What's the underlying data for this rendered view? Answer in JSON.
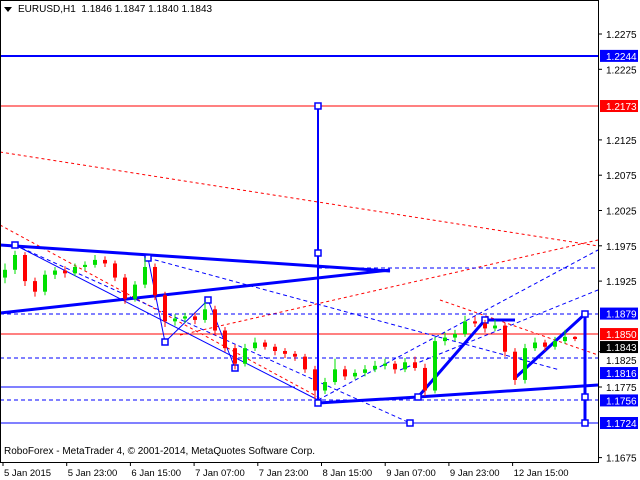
{
  "header": {
    "symbol": "EURUSD,H1",
    "open": "1.1846",
    "high": "1.1847",
    "low": "1.1840",
    "close": "1.1843"
  },
  "footer": {
    "copyright": "RoboForex - MetaTrader 4, © 2001-2014, MetaQuotes Software Corp."
  },
  "colors": {
    "bull": "#00e000",
    "bear": "#ff0000",
    "drawing": "#0000ff",
    "level_red": "#ff0000"
  },
  "chart_data": {
    "type": "candlestick",
    "ylim": [
      1.165,
      1.23
    ],
    "y_ticks": [
      "1.2275",
      "1.2225",
      "1.2125",
      "1.2075",
      "1.2025",
      "1.1975",
      "1.1925",
      "1.1825",
      "1.1775",
      "1.1675"
    ],
    "x_ticks": [
      "5 Jan 2015",
      "5 Jan 23:00",
      "6 Jan 15:00",
      "7 Jan 07:00",
      "7 Jan 23:00",
      "8 Jan 15:00",
      "9 Jan 07:00",
      "9 Jan 23:00",
      "12 Jan 15:00"
    ],
    "price_labels": [
      {
        "value": "1.2244",
        "color": "#0000ff"
      },
      {
        "value": "1.2173",
        "color": "#ff0000"
      },
      {
        "value": "1.1879",
        "color": "#0000ff"
      },
      {
        "value": "1.1843",
        "color": "#000000"
      },
      {
        "value": "1.1850",
        "color": "#ff0000"
      },
      {
        "value": "1.1816",
        "color": "#0000ff"
      },
      {
        "value": "1.1756",
        "color": "#0000ff"
      },
      {
        "value": "1.1724",
        "color": "#0000ff"
      }
    ],
    "candles": [
      [
        1.193,
        1.195,
        1.1922,
        1.1941
      ],
      [
        1.1941,
        1.1968,
        1.1935,
        1.1962
      ],
      [
        1.1962,
        1.1966,
        1.1918,
        1.1925
      ],
      [
        1.1925,
        1.193,
        1.1903,
        1.191
      ],
      [
        1.191,
        1.194,
        1.1905,
        1.1934
      ],
      [
        1.1934,
        1.1945,
        1.1928,
        1.194
      ],
      [
        1.194,
        1.1946,
        1.193,
        1.1936
      ],
      [
        1.1936,
        1.195,
        1.1932,
        1.1945
      ],
      [
        1.1945,
        1.1953,
        1.194,
        1.1948
      ],
      [
        1.1948,
        1.1962,
        1.1944,
        1.1955
      ],
      [
        1.1955,
        1.196,
        1.1945,
        1.195
      ],
      [
        1.195,
        1.1954,
        1.1925,
        1.193
      ],
      [
        1.193,
        1.1935,
        1.1893,
        1.19
      ],
      [
        1.19,
        1.1925,
        1.1896,
        1.192
      ],
      [
        1.192,
        1.1958,
        1.1915,
        1.1945
      ],
      [
        1.1945,
        1.195,
        1.1898,
        1.1905
      ],
      [
        1.1905,
        1.191,
        1.186,
        1.1868
      ],
      [
        1.1868,
        1.1878,
        1.1862,
        1.1872
      ],
      [
        1.1872,
        1.188,
        1.1866,
        1.1875
      ],
      [
        1.1875,
        1.188,
        1.1864,
        1.187
      ],
      [
        1.187,
        1.1895,
        1.1866,
        1.1885
      ],
      [
        1.1885,
        1.189,
        1.1848,
        1.1855
      ],
      [
        1.1855,
        1.186,
        1.1825,
        1.183
      ],
      [
        1.183,
        1.1835,
        1.18,
        1.1808
      ],
      [
        1.1808,
        1.1836,
        1.1804,
        1.183
      ],
      [
        1.183,
        1.1845,
        1.1826,
        1.1838
      ],
      [
        1.1838,
        1.1842,
        1.1828,
        1.1832
      ],
      [
        1.1832,
        1.1836,
        1.182,
        1.1826
      ],
      [
        1.1826,
        1.183,
        1.1816,
        1.1822
      ],
      [
        1.1822,
        1.1826,
        1.1812,
        1.1818
      ],
      [
        1.1818,
        1.1822,
        1.1795,
        1.18
      ],
      [
        1.18,
        1.1805,
        1.1758,
        1.177
      ],
      [
        1.177,
        1.1788,
        1.1765,
        1.1782
      ],
      [
        1.1782,
        1.1815,
        1.1778,
        1.18
      ],
      [
        1.18,
        1.1805,
        1.1785,
        1.179
      ],
      [
        1.179,
        1.18,
        1.1786,
        1.1795
      ],
      [
        1.1795,
        1.1806,
        1.179,
        1.18
      ],
      [
        1.18,
        1.1812,
        1.1796,
        1.1805
      ],
      [
        1.1805,
        1.1815,
        1.18,
        1.1808
      ],
      [
        1.1808,
        1.1812,
        1.1794,
        1.18
      ],
      [
        1.18,
        1.1816,
        1.1796,
        1.181
      ],
      [
        1.181,
        1.1818,
        1.1798,
        1.1802
      ],
      [
        1.1802,
        1.1808,
        1.1762,
        1.177
      ],
      [
        1.177,
        1.1846,
        1.1766,
        1.184
      ],
      [
        1.184,
        1.1852,
        1.1834,
        1.1845
      ],
      [
        1.1845,
        1.1856,
        1.184,
        1.185
      ],
      [
        1.185,
        1.1876,
        1.1846,
        1.1868
      ],
      [
        1.1868,
        1.1875,
        1.186,
        1.1865
      ],
      [
        1.1865,
        1.187,
        1.1852,
        1.1858
      ],
      [
        1.1858,
        1.187,
        1.1854,
        1.1862
      ],
      [
        1.1862,
        1.1866,
        1.1818,
        1.1825
      ],
      [
        1.1825,
        1.183,
        1.1778,
        1.1785
      ],
      [
        1.1785,
        1.1836,
        1.178,
        1.183
      ],
      [
        1.183,
        1.1845,
        1.1826,
        1.1838
      ],
      [
        1.1838,
        1.1842,
        1.1826,
        1.1832
      ],
      [
        1.1832,
        1.1846,
        1.1828,
        1.184
      ],
      [
        1.184,
        1.1856,
        1.1836,
        1.1846
      ],
      [
        1.1846,
        1.1847,
        1.184,
        1.1843
      ]
    ]
  }
}
